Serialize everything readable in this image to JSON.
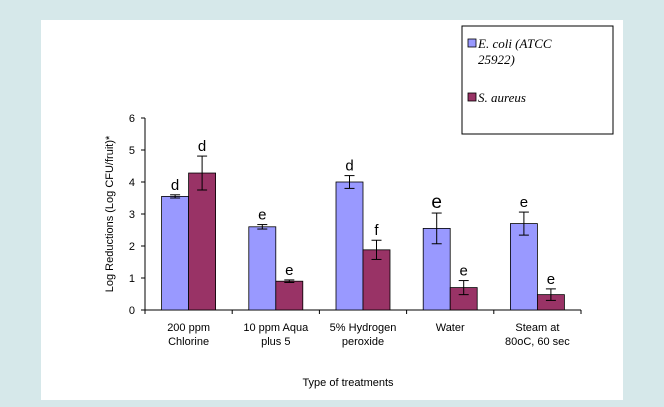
{
  "chart_data": {
    "type": "bar",
    "title": "",
    "xlabel": "Type of treatments",
    "ylabel": "Log Reductions (Log CFU/fruit)*",
    "ylim": [
      0,
      6
    ],
    "yticks": [
      "0",
      "1",
      "2",
      "3",
      "4",
      "5",
      "6"
    ],
    "categories": [
      [
        "200 ppm",
        "Chlorine"
      ],
      [
        "10 ppm  Aqua",
        "plus 5"
      ],
      [
        "5% Hydrogen",
        "peroxide"
      ],
      [
        "Water"
      ],
      [
        "Steam at",
        "80oC, 60 sec"
      ]
    ],
    "series": [
      {
        "name": "E. coli (ATCC 25922)",
        "legend_lines": [
          "E. coli (ATCC",
          "25922)"
        ],
        "color": "#9999ff",
        "values": [
          3.55,
          2.6,
          4.0,
          2.55,
          2.7
        ],
        "errors": [
          0.05,
          0.07,
          0.2,
          0.48,
          0.36
        ],
        "labels": [
          "d",
          "e",
          "d",
          "e",
          "e"
        ]
      },
      {
        "name": "S. aureus",
        "legend_lines": [
          "S. aureus"
        ],
        "color": "#993366",
        "values": [
          4.28,
          0.9,
          1.88,
          0.7,
          0.48
        ],
        "errors": [
          0.53,
          0.04,
          0.3,
          0.22,
          0.18
        ],
        "labels": [
          "d",
          "e",
          "f",
          "e",
          "e"
        ]
      }
    ],
    "grid": false,
    "legend_position": "top-right"
  }
}
